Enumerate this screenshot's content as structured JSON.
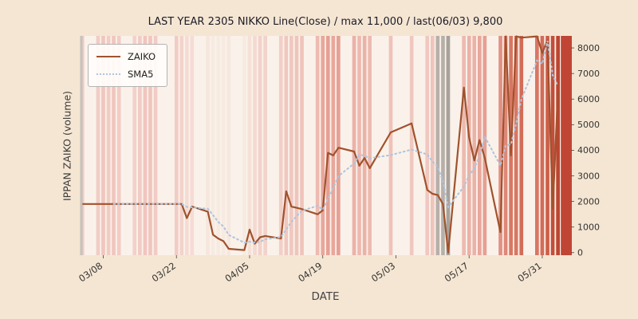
{
  "title": "LAST YEAR 2305 NIKKO Line(Close) / max 11,000 / last(06/03) 9,800",
  "xlabel": "DATE",
  "ylabel": "IPPAN ZAIKO (volume)",
  "legend": {
    "zaiko_label": "ZAIKO",
    "sma5_label": "SMA5"
  },
  "colors": {
    "figure_bg": "#f5e6d3",
    "title_text": "#1b1b26",
    "tick_text": "#333333",
    "zaiko_line": "#a0522d",
    "sma5_line": "#b0c4de"
  },
  "chart_data": {
    "type": "line",
    "title": "LAST YEAR 2305 NIKKO Line(Close) / max 11,000 / last(06/03) 9,800",
    "xlabel": "DATE",
    "ylabel": "IPPAN ZAIKO (volume)",
    "legend_position": "upper-left",
    "grid": false,
    "plot_bg": "#faf2ea",
    "xlim": [
      -0.5,
      93.5
    ],
    "ylim": [
      -100,
      8470
    ],
    "x_ticks": [
      {
        "label": "03/08",
        "day": 4
      },
      {
        "label": "03/22",
        "day": 18
      },
      {
        "label": "04/05",
        "day": 32
      },
      {
        "label": "04/19",
        "day": 46
      },
      {
        "label": "05/03",
        "day": 60
      },
      {
        "label": "05/17",
        "day": 74
      },
      {
        "label": "05/31",
        "day": 88
      }
    ],
    "y_ticks": [
      0,
      1000,
      2000,
      3000,
      4000,
      5000,
      6000,
      7000,
      8000
    ],
    "series": [
      {
        "name": "ZAIKO",
        "style": "solid",
        "color": "#a0522d"
      },
      {
        "name": "SMA5",
        "style": "dotted",
        "color": "#b0c4de",
        "derived": "5-point moving average of ZAIKO"
      }
    ],
    "points": [
      {
        "d": "03/04",
        "t": 0,
        "v": 1900,
        "c": "#f1ccc5"
      },
      {
        "d": "03/07",
        "t": 3,
        "v": 1900,
        "c": "#f1ccc5"
      },
      {
        "d": "03/08",
        "t": 4,
        "v": 1900,
        "c": "#f0c6be"
      },
      {
        "d": "03/09",
        "t": 5,
        "v": 1900,
        "c": "#f1ccc5"
      },
      {
        "d": "03/10",
        "t": 6,
        "v": 1900,
        "c": "#f0c6be"
      },
      {
        "d": "03/11",
        "t": 7,
        "v": 1900,
        "c": "#f1ccc5"
      },
      {
        "d": "03/14",
        "t": 10,
        "v": 1900,
        "c": "#f2d1ca"
      },
      {
        "d": "03/15",
        "t": 11,
        "v": 1900,
        "c": "#f1ccc5"
      },
      {
        "d": "03/16",
        "t": 12,
        "v": 1900,
        "c": "#f0c6be"
      },
      {
        "d": "03/17",
        "t": 13,
        "v": 1900,
        "c": "#f0c6be"
      },
      {
        "d": "03/18",
        "t": 14,
        "v": 1900,
        "c": "#f1ccc5"
      },
      {
        "d": "03/22",
        "t": 18,
        "v": 1900,
        "c": "#f1ccc5"
      },
      {
        "d": "03/23",
        "t": 19,
        "v": 1900,
        "c": "#f2d3cb"
      },
      {
        "d": "03/24",
        "t": 20,
        "v": 1350,
        "c": "#f4dcd4"
      },
      {
        "d": "03/25",
        "t": 21,
        "v": 1800,
        "c": "#f4dcd4"
      },
      {
        "d": "03/28",
        "t": 24,
        "v": 1600,
        "c": "#f6e6dc"
      },
      {
        "d": "03/29",
        "t": 25,
        "v": 700,
        "c": "#f7ebe1"
      },
      {
        "d": "03/30",
        "t": 26,
        "v": 550,
        "c": "#f7ebe1"
      },
      {
        "d": "03/31",
        "t": 27,
        "v": 450,
        "c": "#f7ebe1"
      },
      {
        "d": "04/01",
        "t": 28,
        "v": 150,
        "c": "#f6e8de"
      },
      {
        "d": "04/04",
        "t": 31,
        "v": 100,
        "c": "#f7ebe1"
      },
      {
        "d": "04/05",
        "t": 32,
        "v": 900,
        "c": "#f5e1d7"
      },
      {
        "d": "04/06",
        "t": 33,
        "v": 350,
        "c": "#f4d9d1"
      },
      {
        "d": "04/07",
        "t": 34,
        "v": 600,
        "c": "#f2d2ca"
      },
      {
        "d": "04/08",
        "t": 35,
        "v": 650,
        "c": "#f2d2ca"
      },
      {
        "d": "04/11",
        "t": 38,
        "v": 550,
        "c": "#f1cfc7"
      },
      {
        "d": "04/12",
        "t": 39,
        "v": 2400,
        "c": "#f0c8c0"
      },
      {
        "d": "04/13",
        "t": 40,
        "v": 1800,
        "c": "#f0c8c0"
      },
      {
        "d": "04/14",
        "t": 41,
        "v": 1750,
        "c": "#efc4bb"
      },
      {
        "d": "04/15",
        "t": 42,
        "v": 1700,
        "c": "#efc4bb"
      },
      {
        "d": "04/18",
        "t": 45,
        "v": 1500,
        "c": "#edbbb1"
      },
      {
        "d": "04/19",
        "t": 46,
        "v": 1650,
        "c": "#e8a79c"
      },
      {
        "d": "04/20",
        "t": 47,
        "v": 3900,
        "c": "#e6a094"
      },
      {
        "d": "04/21",
        "t": 48,
        "v": 3800,
        "c": "#e8a79c"
      },
      {
        "d": "04/22",
        "t": 49,
        "v": 4100,
        "c": "#e6a094"
      },
      {
        "d": "04/25",
        "t": 52,
        "v": 3950,
        "c": "#ebb2a8"
      },
      {
        "d": "04/26",
        "t": 53,
        "v": 3400,
        "c": "#edbab0"
      },
      {
        "d": "04/27",
        "t": 54,
        "v": 3700,
        "c": "#ebb2a8"
      },
      {
        "d": "04/28",
        "t": 55,
        "v": 3300,
        "c": "#edbab0"
      },
      {
        "d": "05/02",
        "t": 59,
        "v": 4700,
        "c": "#efc2b9"
      },
      {
        "d": "05/06",
        "t": 63,
        "v": 5050,
        "c": "#f0c8c0"
      },
      {
        "d": "05/09",
        "t": 66,
        "v": 2450,
        "c": "#f0c8c0"
      },
      {
        "d": "05/10",
        "t": 67,
        "v": 2300,
        "c": "#efc4bb"
      },
      {
        "d": "05/11",
        "t": 68,
        "v": 2250,
        "c": "#b7b0aa"
      },
      {
        "d": "05/12",
        "t": 69,
        "v": 1900,
        "c": "#b7b0aa"
      },
      {
        "d": "05/13",
        "t": 70,
        "v": 0,
        "c": "#a8a19b"
      },
      {
        "d": "05/16",
        "t": 73,
        "v": 6450,
        "c": "#edbab0"
      },
      {
        "d": "05/17",
        "t": 74,
        "v": 4500,
        "c": "#ebb2a8"
      },
      {
        "d": "05/18",
        "t": 75,
        "v": 3600,
        "c": "#ebb2a8"
      },
      {
        "d": "05/19",
        "t": 76,
        "v": 4400,
        "c": "#e8a79c"
      },
      {
        "d": "05/20",
        "t": 77,
        "v": 3700,
        "c": "#e6a094"
      },
      {
        "d": "05/23",
        "t": 80,
        "v": 800,
        "c": "#e19184"
      },
      {
        "d": "05/24",
        "t": 81,
        "v": 8450,
        "c": "#de8878"
      },
      {
        "d": "05/25",
        "t": 82,
        "v": 3800,
        "c": "#d87764"
      },
      {
        "d": "05/26",
        "t": 83,
        "v": 8450,
        "c": "#d87764"
      },
      {
        "d": "05/27",
        "t": 84,
        "v": 8400,
        "c": "#d26c58"
      },
      {
        "d": "05/30",
        "t": 87,
        "v": 8450,
        "c": "#d87764"
      },
      {
        "d": "05/31",
        "t": 88,
        "v": 7800,
        "c": "#d26c58"
      },
      {
        "d": "06/01",
        "t": 89,
        "v": 8300,
        "c": "#cc5f4a"
      },
      {
        "d": "06/02",
        "t": 90,
        "v": 1700,
        "c": "#c24f3a"
      },
      {
        "d": "06/03",
        "t": 91,
        "v": 6300,
        "c": "#bc4530"
      }
    ],
    "extra_bands": [
      {
        "day": -0.45,
        "width": 0.5,
        "color": "#c9c2bb"
      },
      {
        "day": 91.55,
        "width": 2.1,
        "color": "#c04534"
      }
    ]
  }
}
